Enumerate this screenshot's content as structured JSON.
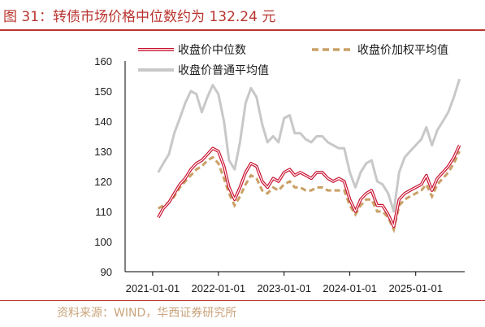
{
  "figure": {
    "title": "图 31：转债市场价格中位数约为 132.24 元",
    "source": "资料来源：WIND，华西证券研究所"
  },
  "chart_data": {
    "type": "line",
    "title": "",
    "xlabel": "",
    "ylabel": "",
    "ylim": [
      90,
      160
    ],
    "yticks": [
      90,
      100,
      110,
      120,
      130,
      140,
      150,
      160
    ],
    "xticks": [
      "2021-01-01",
      "2022-01-01",
      "2023-01-01",
      "2024-01-01",
      "2025-01-01"
    ],
    "xlim": [
      "2020-08-01",
      "2025-09-30"
    ],
    "legend_position": "top",
    "colors": {
      "median": "#c8102e",
      "weighted": "#c9a066",
      "ordinary": "#c8c8c8"
    },
    "series": [
      {
        "name": "收盘价中位数",
        "key": "median",
        "style": "double-line",
        "x": [
          "2021-02-01",
          "2021-03-01",
          "2021-04-01",
          "2021-05-01",
          "2021-06-01",
          "2021-07-01",
          "2021-08-01",
          "2021-09-01",
          "2021-10-01",
          "2021-11-01",
          "2021-12-01",
          "2022-01-01",
          "2022-02-01",
          "2022-03-01",
          "2022-04-01",
          "2022-05-01",
          "2022-06-01",
          "2022-07-01",
          "2022-08-01",
          "2022-09-01",
          "2022-10-01",
          "2022-11-01",
          "2022-12-01",
          "2023-01-01",
          "2023-02-01",
          "2023-03-01",
          "2023-04-01",
          "2023-05-01",
          "2023-06-01",
          "2023-07-01",
          "2023-08-01",
          "2023-09-01",
          "2023-10-01",
          "2023-11-01",
          "2023-12-01",
          "2024-01-01",
          "2024-02-01",
          "2024-03-01",
          "2024-04-01",
          "2024-05-01",
          "2024-06-01",
          "2024-07-01",
          "2024-08-01",
          "2024-09-01",
          "2024-10-01",
          "2024-11-01",
          "2024-12-01",
          "2025-01-01",
          "2025-02-01",
          "2025-03-01",
          "2025-04-01",
          "2025-05-01",
          "2025-06-01",
          "2025-07-01",
          "2025-08-01",
          "2025-09-01"
        ],
        "values": [
          108,
          111,
          113,
          116,
          119,
          121,
          124,
          126,
          127,
          129,
          131,
          130,
          125,
          118,
          114,
          118,
          123,
          126,
          125,
          120,
          118,
          121,
          120,
          123,
          124,
          122,
          123,
          122,
          121,
          123,
          123,
          121,
          120,
          121,
          120,
          114,
          110,
          114,
          116,
          117,
          112,
          112,
          109,
          105,
          114,
          116,
          117,
          118,
          119,
          122,
          117,
          121,
          123,
          125,
          128,
          132
        ]
      },
      {
        "name": "收盘价加权平均值",
        "key": "weighted",
        "style": "dashed",
        "x": [
          "2021-02-01",
          "2021-03-01",
          "2021-04-01",
          "2021-05-01",
          "2021-06-01",
          "2021-07-01",
          "2021-08-01",
          "2021-09-01",
          "2021-10-01",
          "2021-11-01",
          "2021-12-01",
          "2022-01-01",
          "2022-02-01",
          "2022-03-01",
          "2022-04-01",
          "2022-05-01",
          "2022-06-01",
          "2022-07-01",
          "2022-08-01",
          "2022-09-01",
          "2022-10-01",
          "2022-11-01",
          "2022-12-01",
          "2023-01-01",
          "2023-02-01",
          "2023-03-01",
          "2023-04-01",
          "2023-05-01",
          "2023-06-01",
          "2023-07-01",
          "2023-08-01",
          "2023-09-01",
          "2023-10-01",
          "2023-11-01",
          "2023-12-01",
          "2024-01-01",
          "2024-02-01",
          "2024-03-01",
          "2024-04-01",
          "2024-05-01",
          "2024-06-01",
          "2024-07-01",
          "2024-08-01",
          "2024-09-01",
          "2024-10-01",
          "2024-11-01",
          "2024-12-01",
          "2025-01-01",
          "2025-02-01",
          "2025-03-01",
          "2025-04-01",
          "2025-05-01",
          "2025-06-01",
          "2025-07-01",
          "2025-08-01",
          "2025-09-01"
        ],
        "values": [
          111,
          112,
          113,
          115,
          118,
          120,
          122,
          124,
          125,
          127,
          128,
          126,
          121,
          116,
          112,
          115,
          119,
          122,
          121,
          117,
          116,
          118,
          117,
          119,
          120,
          118,
          118,
          117,
          117,
          118,
          118,
          117,
          117,
          117,
          117,
          112,
          109,
          112,
          114,
          114,
          110,
          110,
          108,
          104,
          112,
          114,
          115,
          116,
          117,
          119,
          115,
          119,
          121,
          123,
          126,
          130
        ]
      },
      {
        "name": "收盘价普通平均值",
        "key": "ordinary",
        "style": "solid",
        "x": [
          "2021-02-01",
          "2021-03-01",
          "2021-04-01",
          "2021-05-01",
          "2021-06-01",
          "2021-07-01",
          "2021-08-01",
          "2021-09-01",
          "2021-10-01",
          "2021-11-01",
          "2021-12-01",
          "2022-01-01",
          "2022-02-01",
          "2022-03-01",
          "2022-04-01",
          "2022-05-01",
          "2022-06-01",
          "2022-07-01",
          "2022-08-01",
          "2022-09-01",
          "2022-10-01",
          "2022-11-01",
          "2022-12-01",
          "2023-01-01",
          "2023-02-01",
          "2023-03-01",
          "2023-04-01",
          "2023-05-01",
          "2023-06-01",
          "2023-07-01",
          "2023-08-01",
          "2023-09-01",
          "2023-10-01",
          "2023-11-01",
          "2023-12-01",
          "2024-01-01",
          "2024-02-01",
          "2024-03-01",
          "2024-04-01",
          "2024-05-01",
          "2024-06-01",
          "2024-07-01",
          "2024-08-01",
          "2024-09-01",
          "2024-10-01",
          "2024-11-01",
          "2024-12-01",
          "2025-01-01",
          "2025-02-01",
          "2025-03-01",
          "2025-04-01",
          "2025-05-01",
          "2025-06-01",
          "2025-07-01",
          "2025-08-01",
          "2025-09-01"
        ],
        "values": [
          123,
          126,
          129,
          136,
          141,
          146,
          150,
          149,
          143,
          148,
          152,
          149,
          140,
          127,
          124,
          133,
          146,
          151,
          148,
          139,
          133,
          135,
          133,
          141,
          142,
          136,
          136,
          134,
          133,
          135,
          135,
          133,
          132,
          131,
          131,
          123,
          118,
          123,
          126,
          127,
          120,
          119,
          116,
          110,
          123,
          128,
          130,
          132,
          134,
          138,
          132,
          137,
          140,
          143,
          148,
          154
        ]
      }
    ]
  }
}
